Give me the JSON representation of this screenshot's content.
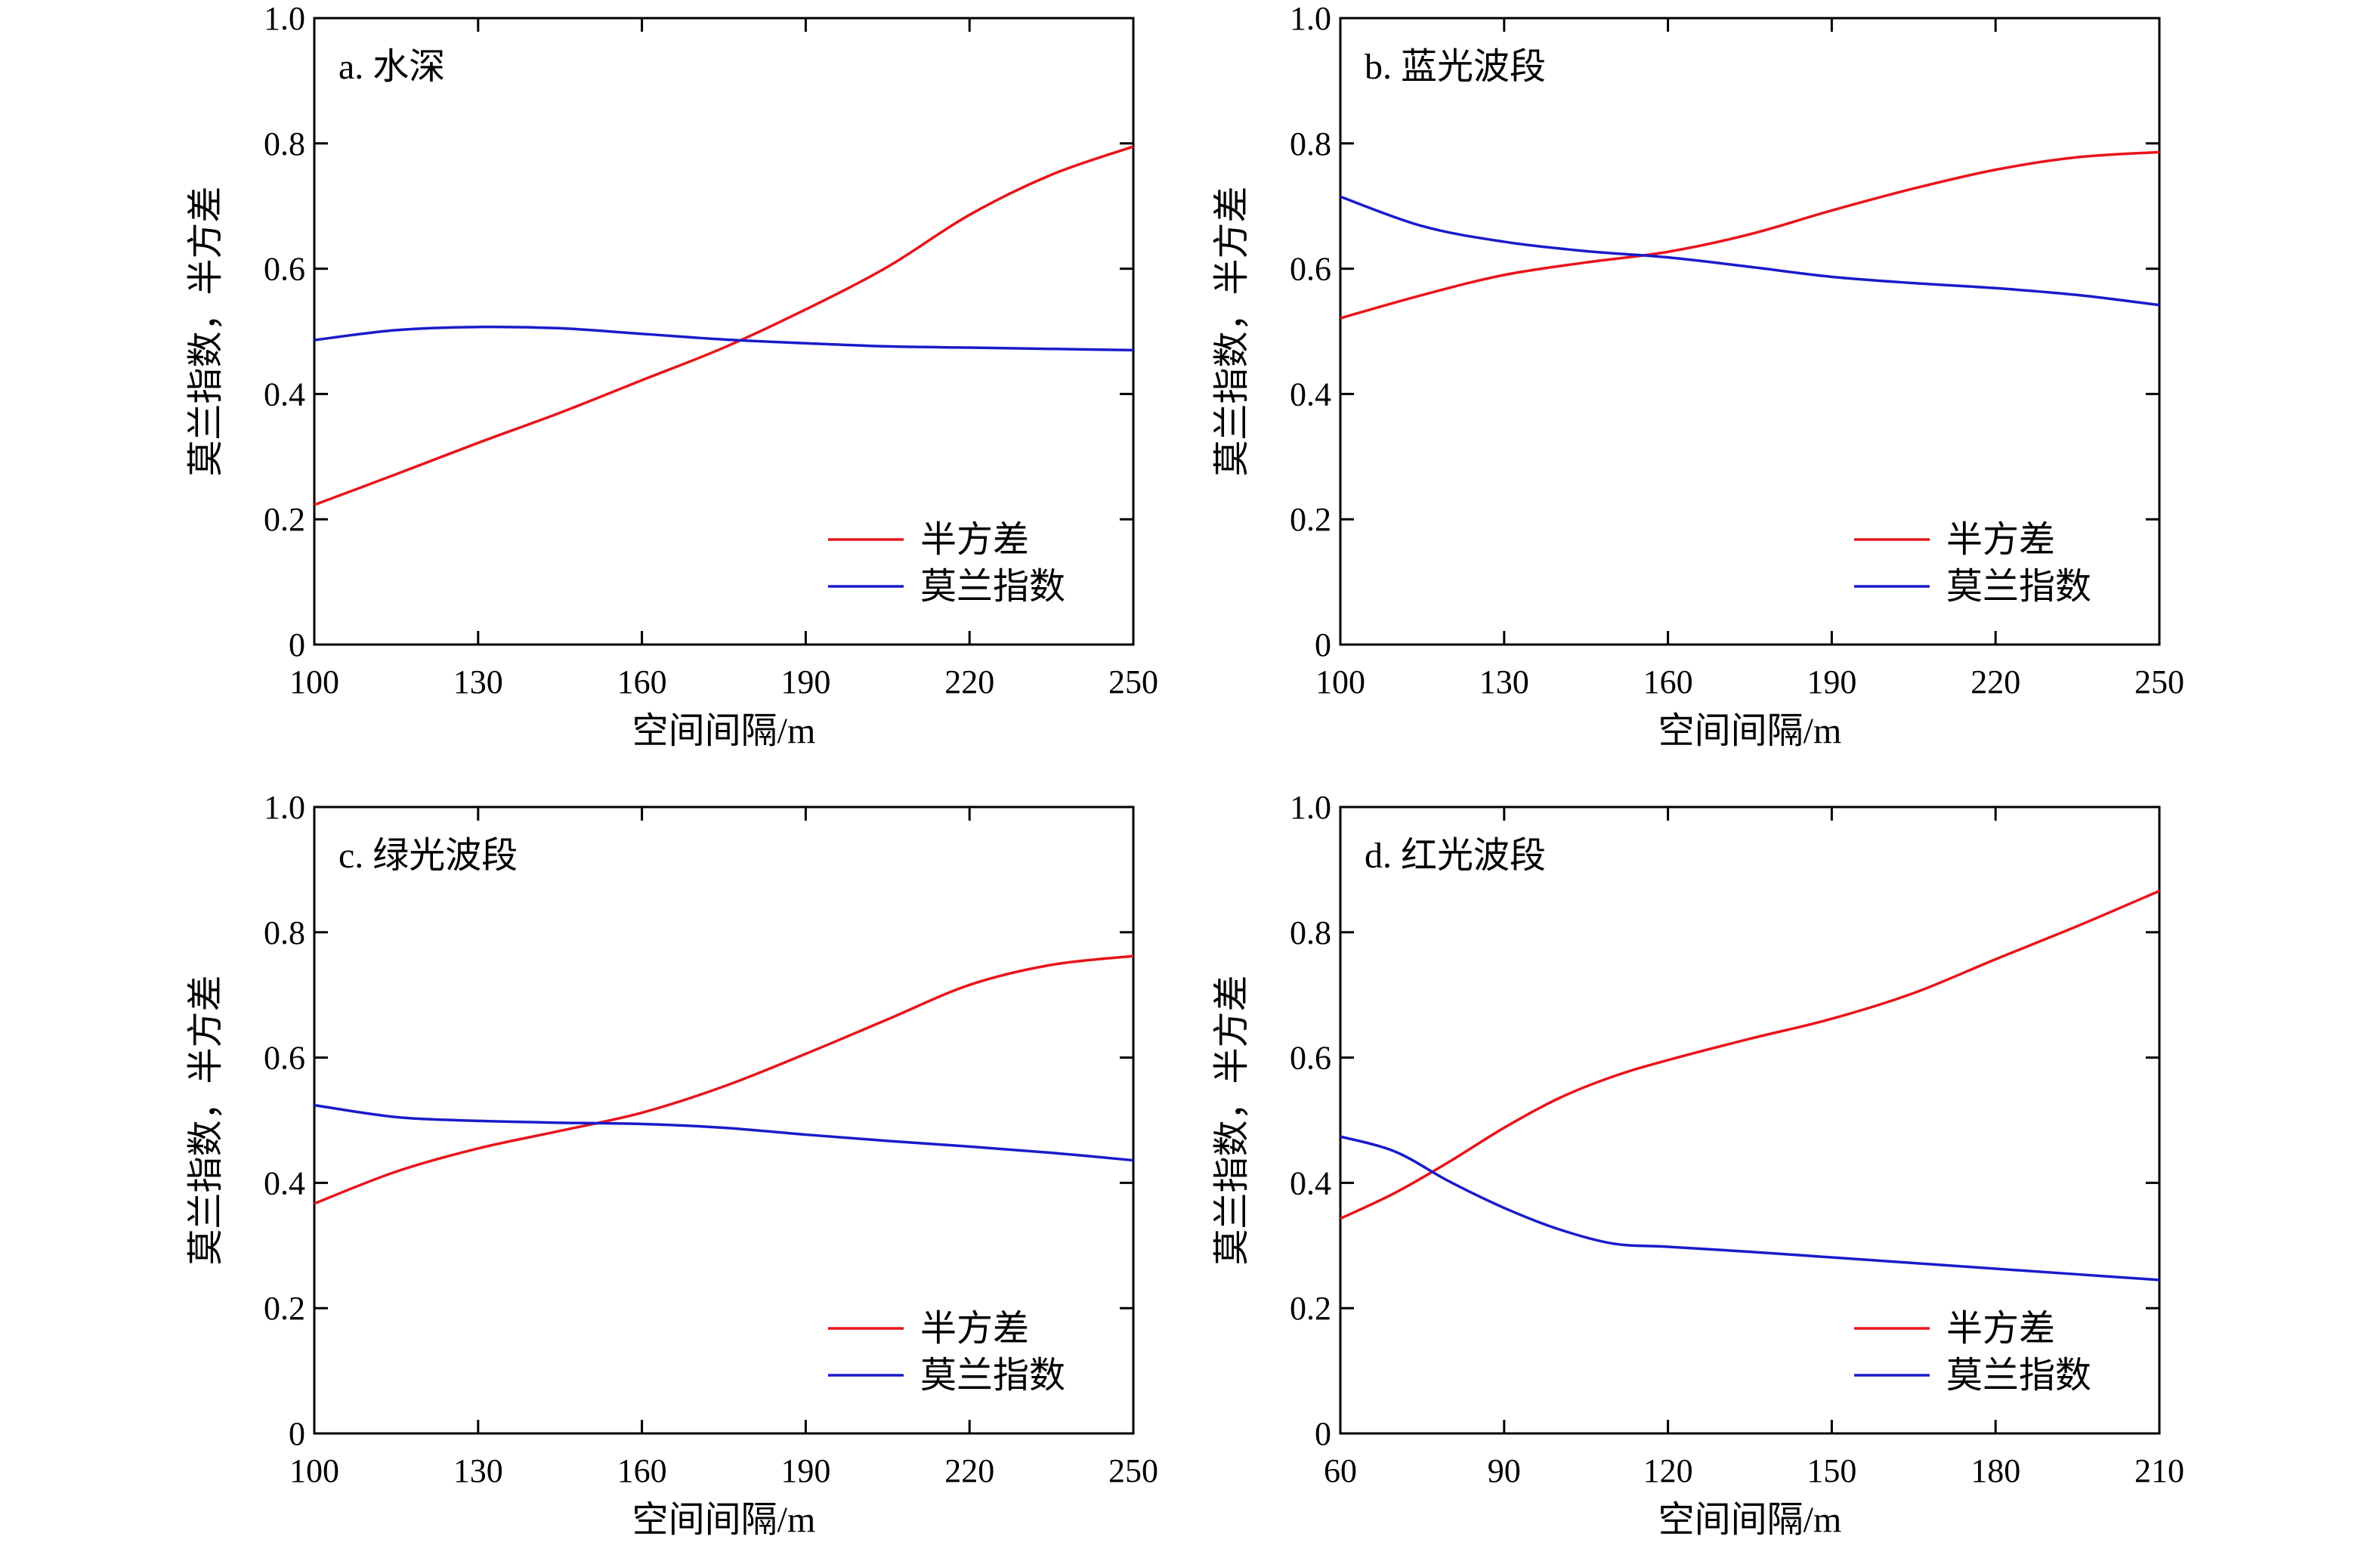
{
  "colors": {
    "semivariance": "#e8141b",
    "moran": "#1a1acc",
    "axis": "#000000"
  },
  "chart_data": [
    {
      "type": "line",
      "panel_label": "a. 水深",
      "xlabel": "空间间隔/m",
      "ylabel": "莫兰指数，半方差",
      "xlim": [
        100,
        250
      ],
      "ylim": [
        0,
        1.0
      ],
      "xticks": [
        "100",
        "130",
        "160",
        "190",
        "220",
        "250"
      ],
      "yticks": [
        "0",
        "0.2",
        "0.4",
        "0.6",
        "0.8",
        "1.0"
      ],
      "legend_position": "bottom-right",
      "x": [
        100,
        115,
        130,
        145,
        160,
        175,
        190,
        205,
        220,
        235,
        250
      ],
      "series": [
        {
          "name": "半方差",
          "color": "#e8141b",
          "values": [
            0.223,
            0.272,
            0.322,
            0.37,
            0.422,
            0.474,
            0.535,
            0.603,
            0.686,
            0.75,
            0.795
          ]
        },
        {
          "name": "莫兰指数",
          "color": "#1a1acc",
          "values": [
            0.486,
            0.502,
            0.507,
            0.505,
            0.496,
            0.487,
            0.481,
            0.476,
            0.474,
            0.472,
            0.47
          ]
        }
      ]
    },
    {
      "type": "line",
      "panel_label": "b. 蓝光波段",
      "xlabel": "空间间隔/m",
      "ylabel": "莫兰指数，半方差",
      "xlim": [
        100,
        250
      ],
      "ylim": [
        0,
        1.0
      ],
      "xticks": [
        "100",
        "130",
        "160",
        "190",
        "220",
        "250"
      ],
      "yticks": [
        "0",
        "0.2",
        "0.4",
        "0.6",
        "0.8",
        "1.0"
      ],
      "legend_position": "bottom-right",
      "x": [
        100,
        115,
        130,
        145,
        160,
        175,
        190,
        205,
        220,
        235,
        250
      ],
      "series": [
        {
          "name": "半方差",
          "color": "#e8141b",
          "values": [
            0.521,
            0.558,
            0.59,
            0.61,
            0.627,
            0.655,
            0.693,
            0.728,
            0.758,
            0.778,
            0.786
          ]
        },
        {
          "name": "莫兰指数",
          "color": "#1a1acc",
          "values": [
            0.715,
            0.668,
            0.643,
            0.628,
            0.618,
            0.603,
            0.587,
            0.577,
            0.569,
            0.558,
            0.542
          ]
        }
      ]
    },
    {
      "type": "line",
      "panel_label": "c. 绿光波段",
      "xlabel": "空间间隔/m",
      "ylabel": "莫兰指数，半方差",
      "xlim": [
        100,
        250
      ],
      "ylim": [
        0,
        1.0
      ],
      "xticks": [
        "100",
        "130",
        "160",
        "190",
        "220",
        "250"
      ],
      "yticks": [
        "0",
        "0.2",
        "0.4",
        "0.6",
        "0.8",
        "1.0"
      ],
      "legend_position": "bottom-right",
      "x": [
        100,
        115,
        130,
        145,
        160,
        175,
        190,
        205,
        220,
        235,
        250
      ],
      "series": [
        {
          "name": "半方差",
          "color": "#e8141b",
          "values": [
            0.367,
            0.418,
            0.455,
            0.483,
            0.512,
            0.554,
            0.606,
            0.661,
            0.716,
            0.748,
            0.762
          ]
        },
        {
          "name": "莫兰指数",
          "color": "#1a1acc",
          "values": [
            0.524,
            0.505,
            0.499,
            0.496,
            0.494,
            0.488,
            0.477,
            0.467,
            0.458,
            0.448,
            0.436
          ]
        }
      ]
    },
    {
      "type": "line",
      "panel_label": "d. 红光波段",
      "xlabel": "空间间隔/m",
      "ylabel": "莫兰指数，半方差",
      "xlim": [
        60,
        210
      ],
      "ylim": [
        0,
        1.0
      ],
      "xticks": [
        "60",
        "90",
        "120",
        "150",
        "180",
        "210"
      ],
      "yticks": [
        "0",
        "0.2",
        "0.4",
        "0.6",
        "0.8",
        "1.0"
      ],
      "legend_position": "bottom-right",
      "x": [
        60,
        70,
        80,
        90,
        100,
        110,
        120,
        135,
        150,
        165,
        180,
        195,
        210
      ],
      "series": [
        {
          "name": "半方差",
          "color": "#e8141b",
          "values": [
            0.343,
            0.384,
            0.434,
            0.488,
            0.535,
            0.57,
            0.596,
            0.63,
            0.662,
            0.703,
            0.757,
            0.81,
            0.866
          ]
        },
        {
          "name": "莫兰指数",
          "color": "#1a1acc",
          "values": [
            0.474,
            0.45,
            0.402,
            0.36,
            0.326,
            0.303,
            0.298,
            0.29,
            0.281,
            0.272,
            0.263,
            0.254,
            0.245
          ]
        }
      ]
    }
  ]
}
